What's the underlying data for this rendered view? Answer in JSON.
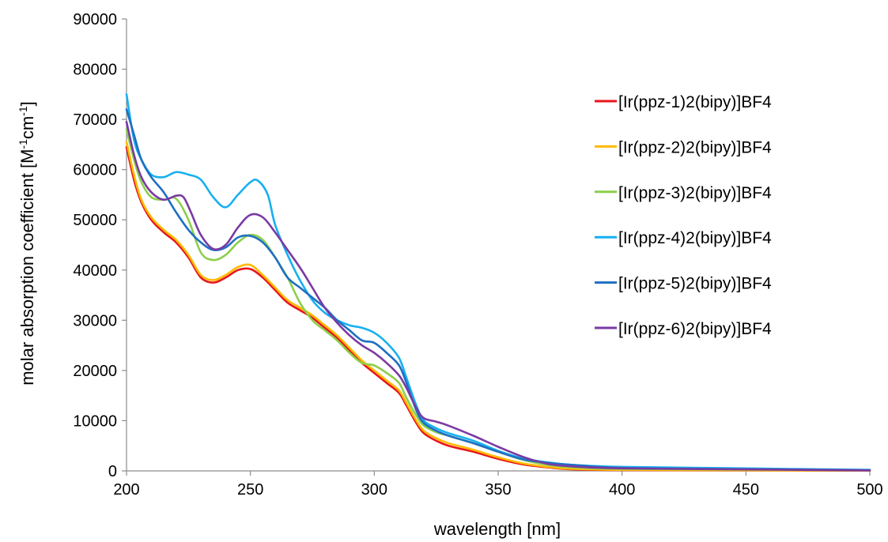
{
  "chart_data": {
    "type": "line",
    "title": "",
    "xlabel": "wavelength [nm]",
    "ylabel": {
      "parts": [
        "molar absorption coefficient [M",
        "-1",
        "cm",
        "-1",
        "]"
      ]
    },
    "xlim": [
      200,
      500
    ],
    "ylim": [
      0,
      90000
    ],
    "x_ticks": [
      "200",
      "250",
      "300",
      "350",
      "400",
      "450",
      "500"
    ],
    "y_ticks": [
      "0",
      "10000",
      "20000",
      "30000",
      "40000",
      "50000",
      "60000",
      "70000",
      "80000",
      "90000"
    ],
    "grid": false,
    "legend_position": "right",
    "series": [
      {
        "name": "[Ir(ppz-1)2(bipy)]BF4",
        "color": "#e8151b",
        "points": [
          [
            200,
            64500
          ],
          [
            203,
            58000
          ],
          [
            206,
            53500
          ],
          [
            210,
            50000
          ],
          [
            215,
            47500
          ],
          [
            220,
            45500
          ],
          [
            225,
            42500
          ],
          [
            230,
            38500
          ],
          [
            235,
            37500
          ],
          [
            240,
            38500
          ],
          [
            245,
            40000
          ],
          [
            250,
            40200
          ],
          [
            255,
            38500
          ],
          [
            260,
            36000
          ],
          [
            265,
            33500
          ],
          [
            270,
            32000
          ],
          [
            275,
            30500
          ],
          [
            280,
            28500
          ],
          [
            285,
            26500
          ],
          [
            290,
            24000
          ],
          [
            295,
            21500
          ],
          [
            300,
            19500
          ],
          [
            305,
            17500
          ],
          [
            310,
            15500
          ],
          [
            313,
            13000
          ],
          [
            317,
            9500
          ],
          [
            320,
            7500
          ],
          [
            325,
            6000
          ],
          [
            330,
            5000
          ],
          [
            340,
            3800
          ],
          [
            350,
            2400
          ],
          [
            360,
            1300
          ],
          [
            370,
            700
          ],
          [
            380,
            300
          ],
          [
            400,
            150
          ],
          [
            450,
            100
          ],
          [
            500,
            50
          ]
        ]
      },
      {
        "name": "[Ir(ppz-2)2(bipy)]BF4",
        "color": "#ffba00",
        "points": [
          [
            200,
            65500
          ],
          [
            203,
            59000
          ],
          [
            206,
            54000
          ],
          [
            210,
            50500
          ],
          [
            215,
            48000
          ],
          [
            220,
            46000
          ],
          [
            225,
            43000
          ],
          [
            230,
            39000
          ],
          [
            235,
            38000
          ],
          [
            240,
            39000
          ],
          [
            245,
            40600
          ],
          [
            250,
            41000
          ],
          [
            255,
            39000
          ],
          [
            260,
            36500
          ],
          [
            265,
            34000
          ],
          [
            270,
            32500
          ],
          [
            275,
            31000
          ],
          [
            280,
            29000
          ],
          [
            285,
            27000
          ],
          [
            290,
            24500
          ],
          [
            295,
            22000
          ],
          [
            300,
            20000
          ],
          [
            305,
            18000
          ],
          [
            310,
            16000
          ],
          [
            313,
            13500
          ],
          [
            317,
            10000
          ],
          [
            320,
            8000
          ],
          [
            325,
            6500
          ],
          [
            330,
            5500
          ],
          [
            340,
            4200
          ],
          [
            350,
            2700
          ],
          [
            360,
            1500
          ],
          [
            370,
            800
          ],
          [
            380,
            400
          ],
          [
            400,
            200
          ],
          [
            450,
            120
          ],
          [
            500,
            60
          ]
        ]
      },
      {
        "name": "[Ir(ppz-3)2(bipy)]BF4",
        "color": "#8ccf4c",
        "points": [
          [
            200,
            68000
          ],
          [
            203,
            62000
          ],
          [
            206,
            57500
          ],
          [
            210,
            54500
          ],
          [
            215,
            54000
          ],
          [
            220,
            54200
          ],
          [
            225,
            50000
          ],
          [
            230,
            43500
          ],
          [
            235,
            42000
          ],
          [
            240,
            43000
          ],
          [
            245,
            45500
          ],
          [
            250,
            47000
          ],
          [
            255,
            46000
          ],
          [
            260,
            42500
          ],
          [
            265,
            38500
          ],
          [
            270,
            33500
          ],
          [
            275,
            30000
          ],
          [
            280,
            28000
          ],
          [
            285,
            26000
          ],
          [
            290,
            23500
          ],
          [
            295,
            21500
          ],
          [
            300,
            21000
          ],
          [
            305,
            19500
          ],
          [
            310,
            17500
          ],
          [
            313,
            14500
          ],
          [
            317,
            11000
          ],
          [
            320,
            9000
          ],
          [
            325,
            7700
          ],
          [
            330,
            7000
          ],
          [
            340,
            5500
          ],
          [
            350,
            3800
          ],
          [
            360,
            2200
          ],
          [
            370,
            1200
          ],
          [
            380,
            700
          ],
          [
            400,
            400
          ],
          [
            450,
            250
          ],
          [
            500,
            100
          ]
        ]
      },
      {
        "name": "[Ir(ppz-4)2(bipy)]BF4",
        "color": "#17b0f0",
        "points": [
          [
            200,
            75000
          ],
          [
            203,
            66000
          ],
          [
            206,
            62000
          ],
          [
            210,
            59000
          ],
          [
            215,
            58500
          ],
          [
            220,
            59500
          ],
          [
            225,
            59000
          ],
          [
            230,
            58000
          ],
          [
            235,
            54500
          ],
          [
            240,
            52500
          ],
          [
            245,
            55000
          ],
          [
            250,
            57500
          ],
          [
            253,
            57800
          ],
          [
            257,
            55000
          ],
          [
            260,
            49000
          ],
          [
            265,
            43000
          ],
          [
            270,
            38000
          ],
          [
            275,
            34000
          ],
          [
            280,
            31500
          ],
          [
            285,
            30000
          ],
          [
            290,
            29000
          ],
          [
            295,
            28500
          ],
          [
            300,
            27500
          ],
          [
            305,
            25500
          ],
          [
            310,
            22500
          ],
          [
            313,
            18500
          ],
          [
            317,
            13000
          ],
          [
            320,
            10000
          ],
          [
            325,
            8500
          ],
          [
            330,
            7500
          ],
          [
            340,
            6000
          ],
          [
            350,
            4000
          ],
          [
            360,
            2500
          ],
          [
            370,
            1700
          ],
          [
            380,
            1200
          ],
          [
            400,
            800
          ],
          [
            450,
            500
          ],
          [
            500,
            200
          ]
        ]
      },
      {
        "name": "[Ir(ppz-5)2(bipy)]BF4",
        "color": "#1e6fc2",
        "points": [
          [
            200,
            72000
          ],
          [
            203,
            67000
          ],
          [
            206,
            62000
          ],
          [
            210,
            58500
          ],
          [
            215,
            55500
          ],
          [
            220,
            51500
          ],
          [
            225,
            48000
          ],
          [
            230,
            45500
          ],
          [
            235,
            44000
          ],
          [
            240,
            44500
          ],
          [
            245,
            46500
          ],
          [
            250,
            46800
          ],
          [
            255,
            45500
          ],
          [
            260,
            42500
          ],
          [
            265,
            38500
          ],
          [
            270,
            36500
          ],
          [
            275,
            34500
          ],
          [
            280,
            32500
          ],
          [
            285,
            30000
          ],
          [
            290,
            28000
          ],
          [
            295,
            26000
          ],
          [
            300,
            25500
          ],
          [
            305,
            23500
          ],
          [
            310,
            21000
          ],
          [
            313,
            17500
          ],
          [
            317,
            12000
          ],
          [
            320,
            9500
          ],
          [
            325,
            8000
          ],
          [
            330,
            7000
          ],
          [
            340,
            5500
          ],
          [
            350,
            3800
          ],
          [
            360,
            2300
          ],
          [
            370,
            1600
          ],
          [
            380,
            1200
          ],
          [
            400,
            600
          ],
          [
            450,
            350
          ],
          [
            500,
            150
          ]
        ]
      },
      {
        "name": "[Ir(ppz-6)2(bipy)]BF4",
        "color": "#7a3aa3",
        "points": [
          [
            200,
            69500
          ],
          [
            203,
            63000
          ],
          [
            206,
            58500
          ],
          [
            210,
            55500
          ],
          [
            215,
            54000
          ],
          [
            220,
            54800
          ],
          [
            223,
            54500
          ],
          [
            226,
            51500
          ],
          [
            230,
            47000
          ],
          [
            235,
            44200
          ],
          [
            240,
            45000
          ],
          [
            245,
            48500
          ],
          [
            250,
            51000
          ],
          [
            255,
            50500
          ],
          [
            260,
            47500
          ],
          [
            265,
            44000
          ],
          [
            270,
            40500
          ],
          [
            275,
            36500
          ],
          [
            280,
            32500
          ],
          [
            285,
            29500
          ],
          [
            290,
            27000
          ],
          [
            295,
            25000
          ],
          [
            300,
            23500
          ],
          [
            305,
            21500
          ],
          [
            310,
            19000
          ],
          [
            313,
            16500
          ],
          [
            317,
            12500
          ],
          [
            320,
            10500
          ],
          [
            325,
            9800
          ],
          [
            330,
            9000
          ],
          [
            340,
            7000
          ],
          [
            350,
            4800
          ],
          [
            360,
            2800
          ],
          [
            370,
            1400
          ],
          [
            380,
            900
          ],
          [
            400,
            500
          ],
          [
            450,
            300
          ],
          [
            500,
            100
          ]
        ]
      }
    ]
  }
}
